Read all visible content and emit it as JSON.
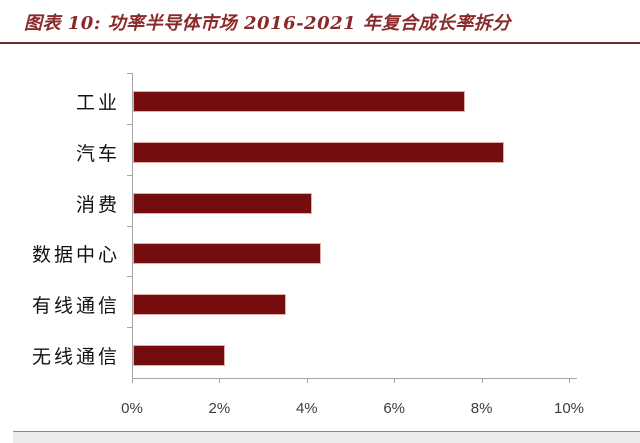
{
  "figure": {
    "title": "图表 10: 功率半导体市场 2016-2021 年复合成长率拆分"
  },
  "colors": {
    "title_text": "#8a2a2b",
    "title_rule": "#6e2b2b",
    "bar_fill": "#750c0e",
    "bar_border": "#e2aea6",
    "axis": "#a6a6a6",
    "tick_label": "#3d3d3d",
    "bottom_strip": "#ebebeb"
  },
  "chart_data": {
    "type": "bar",
    "orientation": "horizontal",
    "title": "功率半导体市场 2016-2021 年复合成长率拆分",
    "categories": [
      "工业",
      "汽车",
      "消费",
      "数据中心",
      "有线通信",
      "无线通信"
    ],
    "values": [
      7.6,
      8.5,
      4.1,
      4.3,
      3.5,
      2.1
    ],
    "unit": "%",
    "xlabel": "",
    "ylabel": "",
    "xlim": [
      0,
      10
    ],
    "x_tick_values": [
      0,
      2,
      4,
      6,
      8,
      10
    ],
    "x_tick_labels": [
      "0%",
      "2%",
      "4%",
      "6%",
      "8%",
      "10%"
    ],
    "grid": false,
    "legend": null
  }
}
